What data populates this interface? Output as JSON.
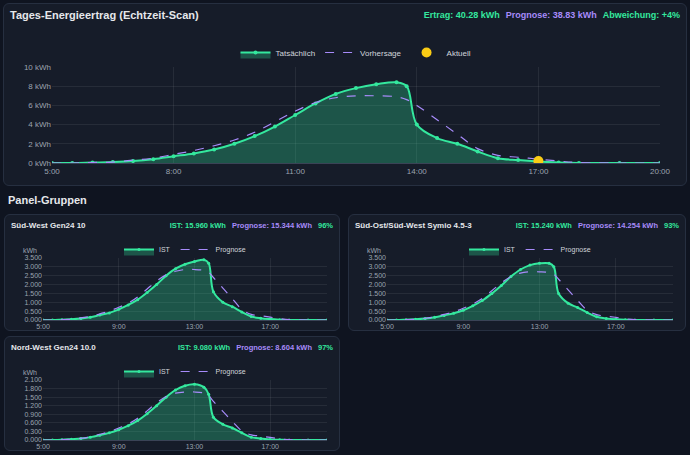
{
  "chart_data": [
    {
      "type": "line",
      "title": "Tages-Energieertrag (Echtzeit-Scan)",
      "annotations": [
        "Ertrag: 40.28 kWh",
        "Prognose: 38.83 kWh",
        "Abweichung: +4%"
      ],
      "x": [
        5,
        5.5,
        6,
        6.5,
        7,
        7.5,
        8,
        8.5,
        9,
        9.5,
        10,
        10.5,
        11,
        11.5,
        12,
        12.5,
        13,
        13.5,
        13.75,
        14,
        14.5,
        15,
        15.5,
        16,
        16.5,
        17,
        17.5,
        18,
        19,
        20
      ],
      "xlim": [
        5,
        20
      ],
      "xticks": [
        {
          "value": 5,
          "label": "5:00"
        },
        {
          "value": 8,
          "label": "8:00"
        },
        {
          "value": 11,
          "label": "11:00"
        },
        {
          "value": 14,
          "label": "14:00"
        },
        {
          "value": 17,
          "label": "17:00"
        },
        {
          "value": 20,
          "label": "20:00"
        }
      ],
      "ylim": [
        0,
        10
      ],
      "yticks": [
        {
          "value": 0,
          "label": "0 kWh"
        },
        {
          "value": 2,
          "label": "2 kWh"
        },
        {
          "value": 4,
          "label": "4 kWh"
        },
        {
          "value": 6,
          "label": "6 kWh"
        },
        {
          "value": 8,
          "label": "8 kWh"
        },
        {
          "value": 10,
          "label": "10 kWh"
        }
      ],
      "grid": true,
      "legend": "top",
      "series": [
        {
          "name": "Tatsächlich",
          "color": "#34e89e",
          "marker": "circle",
          "line_style": "solid",
          "values": [
            0,
            0,
            0.05,
            0.1,
            0.2,
            0.4,
            0.7,
            1.0,
            1.4,
            2.0,
            2.8,
            3.8,
            5.0,
            6.2,
            7.2,
            7.8,
            8.2,
            8.4,
            8.0,
            4.0,
            2.6,
            2.0,
            1.2,
            0.5,
            0.3,
            0.15,
            0.05,
            0,
            0,
            0
          ]
        },
        {
          "name": "Vorhersage",
          "color": "#a78bfa",
          "line_style": "dashed",
          "values": [
            0,
            0,
            0.05,
            0.1,
            0.3,
            0.5,
            0.9,
            1.3,
            1.8,
            2.4,
            3.2,
            4.3,
            5.4,
            6.3,
            6.8,
            7.0,
            7.0,
            6.9,
            6.6,
            6.0,
            4.5,
            3.0,
            1.5,
            0.8,
            0.6,
            0.4,
            0.2,
            0.05,
            0,
            0
          ]
        },
        {
          "name": "Aktuell",
          "color": "#facc15",
          "type": "scatter",
          "marker": "circle",
          "x": [
            17
          ],
          "values": [
            0.2
          ]
        }
      ]
    },
    {
      "type": "line",
      "title": "Süd-West Gen24 10",
      "annotations": [
        "IST: 15.960 kWh",
        "Prognose: 15.344 kWh",
        "96%"
      ],
      "y_label": "kWh",
      "x": [
        5,
        5.5,
        6,
        6.5,
        7,
        7.5,
        8,
        8.5,
        9,
        9.5,
        10,
        10.5,
        11,
        11.5,
        12,
        12.5,
        13,
        13.5,
        13.75,
        14,
        14.5,
        15,
        15.5,
        16,
        16.5,
        17,
        17.5,
        18,
        19,
        20
      ],
      "xlim": [
        5,
        20
      ],
      "xticks": [
        {
          "value": 5,
          "label": "5:00"
        },
        {
          "value": 9,
          "label": "9:00"
        },
        {
          "value": 13,
          "label": "13:00"
        },
        {
          "value": 17,
          "label": "17:00"
        }
      ],
      "ylim": [
        0,
        3.5
      ],
      "yticks": [
        {
          "value": 0,
          "label": "0.000"
        },
        {
          "value": 0.5,
          "label": "0.500"
        },
        {
          "value": 1,
          "label": "1.000"
        },
        {
          "value": 1.5,
          "label": "1.500"
        },
        {
          "value": 2,
          "label": "2.000"
        },
        {
          "value": 2.5,
          "label": "2.500"
        },
        {
          "value": 3,
          "label": "3.000"
        },
        {
          "value": 3.5,
          "label": "3.500"
        }
      ],
      "grid": true,
      "legend": "top",
      "series": [
        {
          "name": "IST",
          "color": "#34e89e",
          "marker": "circle",
          "line_style": "solid",
          "values": [
            0,
            0,
            0.02,
            0.04,
            0.08,
            0.15,
            0.28,
            0.4,
            0.6,
            0.85,
            1.15,
            1.55,
            2.0,
            2.5,
            2.9,
            3.15,
            3.3,
            3.4,
            3.2,
            1.6,
            1.0,
            0.75,
            0.45,
            0.2,
            0.1,
            0.05,
            0.02,
            0,
            0,
            0
          ]
        },
        {
          "name": "Prognose",
          "color": "#a78bfa",
          "line_style": "dashed",
          "values": [
            0,
            0,
            0.02,
            0.04,
            0.12,
            0.2,
            0.35,
            0.5,
            0.72,
            0.95,
            1.3,
            1.75,
            2.2,
            2.55,
            2.75,
            2.85,
            2.85,
            2.8,
            2.7,
            2.4,
            1.8,
            1.2,
            0.6,
            0.32,
            0.24,
            0.16,
            0.08,
            0.02,
            0,
            0
          ]
        }
      ]
    },
    {
      "type": "line",
      "title": "Süd-Ost/Süd-West Symio 4.5-3",
      "annotations": [
        "IST: 15.240 kWh",
        "Prognose: 14.254 kWh",
        "93%"
      ],
      "y_label": "kWh",
      "x": [
        5,
        5.5,
        6,
        6.5,
        7,
        7.5,
        8,
        8.5,
        9,
        9.5,
        10,
        10.5,
        11,
        11.5,
        12,
        12.5,
        13,
        13.5,
        13.75,
        14,
        14.5,
        15,
        15.5,
        16,
        16.5,
        17,
        17.5,
        18,
        19,
        20
      ],
      "xlim": [
        5,
        20
      ],
      "xticks": [
        {
          "value": 5,
          "label": "5:00"
        },
        {
          "value": 9,
          "label": "9:00"
        },
        {
          "value": 13,
          "label": "13:00"
        },
        {
          "value": 17,
          "label": "17:00"
        }
      ],
      "ylim": [
        0,
        3.5
      ],
      "yticks": [
        {
          "value": 0,
          "label": "0.000"
        },
        {
          "value": 0.5,
          "label": "0.500"
        },
        {
          "value": 1,
          "label": "1.000"
        },
        {
          "value": 1.5,
          "label": "1.500"
        },
        {
          "value": 2,
          "label": "2.000"
        },
        {
          "value": 2.5,
          "label": "2.500"
        },
        {
          "value": 3,
          "label": "3.000"
        },
        {
          "value": 3.5,
          "label": "3.500"
        }
      ],
      "grid": true,
      "legend": "top",
      "series": [
        {
          "name": "IST",
          "color": "#34e89e",
          "marker": "circle",
          "line_style": "solid",
          "values": [
            0,
            0,
            0.02,
            0.04,
            0.08,
            0.15,
            0.26,
            0.38,
            0.55,
            0.8,
            1.1,
            1.5,
            1.95,
            2.45,
            2.85,
            3.1,
            3.2,
            3.2,
            3.0,
            1.5,
            0.95,
            0.7,
            0.42,
            0.18,
            0.09,
            0.04,
            0.01,
            0,
            0,
            0
          ]
        },
        {
          "name": "Prognose",
          "color": "#a78bfa",
          "line_style": "dashed",
          "values": [
            0,
            0,
            0.02,
            0.04,
            0.1,
            0.18,
            0.32,
            0.46,
            0.66,
            0.9,
            1.22,
            1.65,
            2.1,
            2.45,
            2.65,
            2.72,
            2.72,
            2.68,
            2.58,
            2.3,
            1.7,
            1.1,
            0.55,
            0.3,
            0.22,
            0.15,
            0.07,
            0.02,
            0,
            0
          ]
        }
      ]
    },
    {
      "type": "line",
      "title": "Nord-West Gen24 10.0",
      "annotations": [
        "IST: 9.080 kWh",
        "Prognose: 8.604 kWh",
        "97%"
      ],
      "y_label": "kWh",
      "x": [
        5,
        5.5,
        6,
        6.5,
        7,
        7.5,
        8,
        8.5,
        9,
        9.5,
        10,
        10.5,
        11,
        11.5,
        12,
        12.5,
        13,
        13.5,
        13.75,
        14,
        14.5,
        15,
        15.5,
        16,
        16.5,
        17,
        17.5,
        18,
        19,
        20
      ],
      "xlim": [
        5,
        20
      ],
      "xticks": [
        {
          "value": 5,
          "label": "5:00"
        },
        {
          "value": 9,
          "label": "9:00"
        },
        {
          "value": 13,
          "label": "13:00"
        },
        {
          "value": 17,
          "label": "17:00"
        }
      ],
      "ylim": [
        0,
        2.1
      ],
      "yticks": [
        {
          "value": 0,
          "label": "0.000"
        },
        {
          "value": 0.3,
          "label": "0.300"
        },
        {
          "value": 0.6,
          "label": "0.600"
        },
        {
          "value": 0.9,
          "label": "0.900"
        },
        {
          "value": 1.2,
          "label": "1.200"
        },
        {
          "value": 1.5,
          "label": "1.500"
        },
        {
          "value": 1.8,
          "label": "1.800"
        },
        {
          "value": 2.1,
          "label": "2.100"
        }
      ],
      "grid": true,
      "legend": "top",
      "series": [
        {
          "name": "IST",
          "color": "#34e89e",
          "marker": "circle",
          "line_style": "solid",
          "values": [
            0,
            0,
            0.01,
            0.03,
            0.05,
            0.1,
            0.17,
            0.25,
            0.36,
            0.5,
            0.68,
            0.92,
            1.2,
            1.5,
            1.75,
            1.9,
            1.95,
            1.85,
            1.6,
            0.8,
            0.55,
            0.42,
            0.25,
            0.1,
            0.05,
            0.02,
            0.01,
            0,
            0,
            0
          ]
        },
        {
          "name": "Prognose",
          "color": "#a78bfa",
          "line_style": "dashed",
          "values": [
            0,
            0,
            0.01,
            0.03,
            0.06,
            0.11,
            0.2,
            0.29,
            0.42,
            0.56,
            0.76,
            1.02,
            1.3,
            1.52,
            1.64,
            1.68,
            1.68,
            1.64,
            1.55,
            1.35,
            1.0,
            0.65,
            0.32,
            0.18,
            0.14,
            0.09,
            0.04,
            0.01,
            0,
            0
          ]
        }
      ]
    }
  ],
  "section_title": "Panel-Gruppen"
}
